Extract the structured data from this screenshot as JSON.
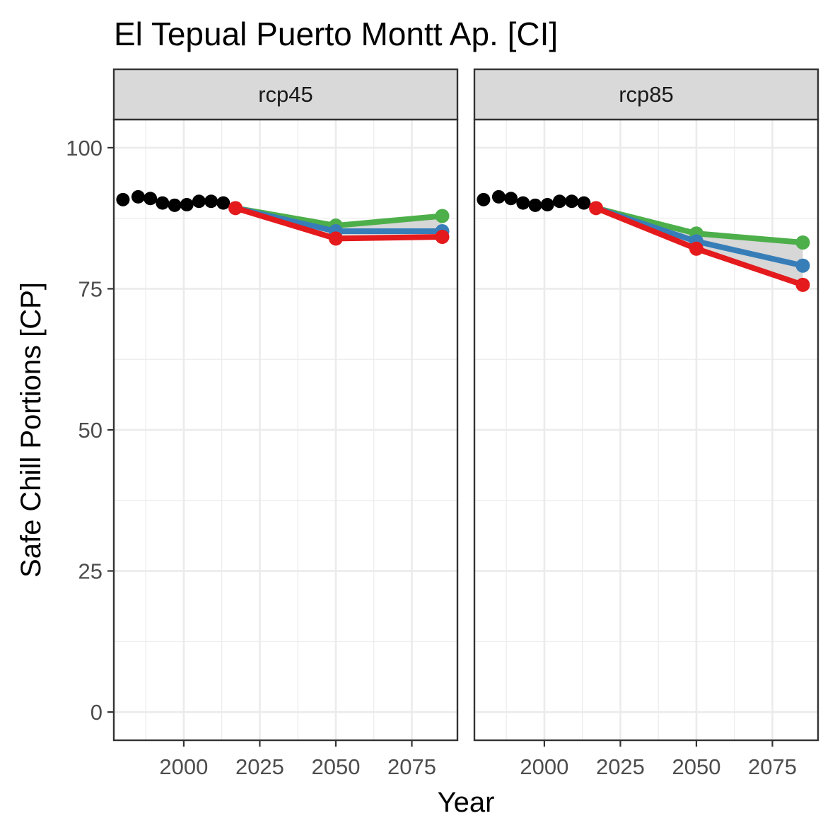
{
  "chart_data": {
    "type": "line",
    "title": "El Tepual Puerto Montt Ap. [CI]",
    "xlabel": "Year",
    "ylabel": "Safe Chill Portions [CP]",
    "xlim": [
      1977,
      2090
    ],
    "ylim": [
      -5,
      105
    ],
    "x_ticks": [
      2000,
      2025,
      2050,
      2075
    ],
    "x_tick_labels": [
      "2000",
      "2025",
      "2050",
      "2075"
    ],
    "y_ticks": [
      0,
      25,
      50,
      75,
      100
    ],
    "y_tick_labels": [
      "0",
      "25",
      "50",
      "75",
      "100"
    ],
    "grid": true,
    "colors": {
      "historic": "#000000",
      "green": "#4daf4a",
      "blue": "#377eb8",
      "red": "#e41a1c",
      "ribbon": "#d3d3d3",
      "strip_bg": "#d9d9d9",
      "panel_border": "#333333",
      "grid": "#ebebeb"
    },
    "panels": [
      {
        "label": "rcp45",
        "historic": {
          "x": [
            1980,
            1985,
            1989,
            1993,
            1997,
            2001,
            2005,
            2009,
            2013
          ],
          "y": [
            90.8,
            91.3,
            91.0,
            90.2,
            89.8,
            89.9,
            90.5,
            90.5,
            90.2
          ]
        },
        "future": {
          "x": [
            2017,
            2050,
            2085
          ],
          "green": [
            89.3,
            86.2,
            87.9
          ],
          "blue": [
            89.3,
            85.2,
            85.2
          ],
          "red": [
            89.3,
            83.9,
            84.2
          ]
        }
      },
      {
        "label": "rcp85",
        "historic": {
          "x": [
            1980,
            1985,
            1989,
            1993,
            1997,
            2001,
            2005,
            2009,
            2013
          ],
          "y": [
            90.8,
            91.3,
            91.0,
            90.2,
            89.8,
            89.9,
            90.5,
            90.5,
            90.2
          ]
        },
        "future": {
          "x": [
            2017,
            2050,
            2085
          ],
          "green": [
            89.3,
            84.8,
            83.2
          ],
          "blue": [
            89.3,
            83.4,
            79.1
          ],
          "red": [
            89.3,
            82.1,
            75.7
          ]
        }
      }
    ]
  }
}
